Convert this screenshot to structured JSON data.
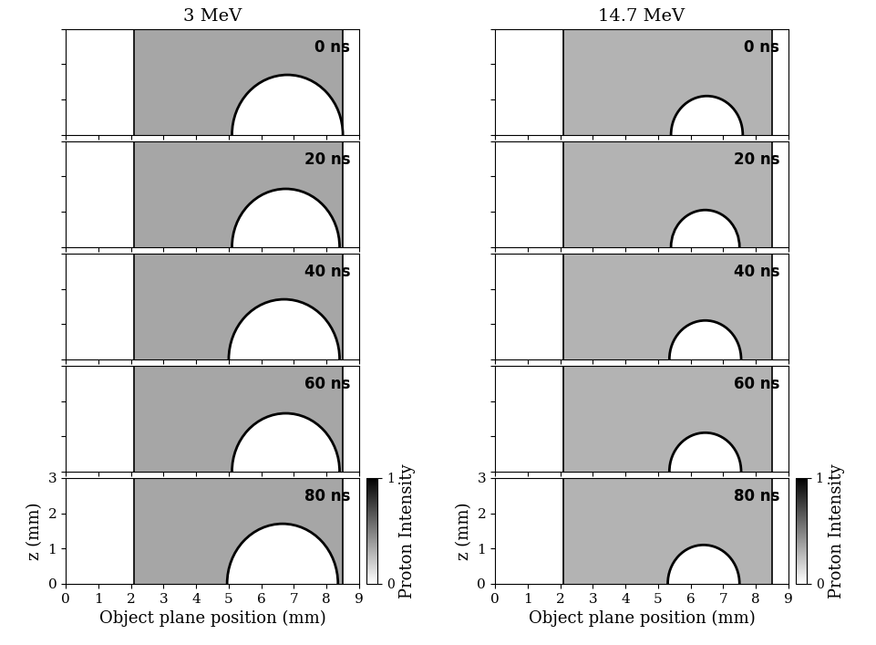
{
  "chart_data": [
    {
      "type": "image",
      "title": "3 MeV",
      "xlabel": "Object plane position (mm)",
      "ylabel": "z (mm)",
      "xlim": [
        0,
        9
      ],
      "ylim": [
        0,
        3
      ],
      "xticks": [
        0,
        1,
        2,
        3,
        4,
        5,
        6,
        7,
        8,
        9
      ],
      "yticks": [
        0,
        1,
        2,
        3
      ],
      "image_xrange": [
        2.1,
        8.5
      ],
      "background_intensity": 0.35,
      "panels": [
        {
          "label": "0 ns",
          "object_center": 6.8,
          "object_radius": 1.7
        },
        {
          "label": "20 ns",
          "object_center": 6.75,
          "object_radius": 1.65
        },
        {
          "label": "40 ns",
          "object_center": 6.7,
          "object_radius": 1.7
        },
        {
          "label": "60 ns",
          "object_center": 6.75,
          "object_radius": 1.65
        },
        {
          "label": "80 ns",
          "object_center": 6.65,
          "object_radius": 1.7
        }
      ],
      "colorbar": {
        "label": "Proton Intensity",
        "range": [
          0,
          1
        ],
        "ticks": [
          0,
          1
        ]
      }
    },
    {
      "type": "image",
      "title": "14.7 MeV",
      "xlabel": "Object plane position (mm)",
      "ylabel": "z (mm)",
      "xlim": [
        0,
        9
      ],
      "ylim": [
        0,
        3
      ],
      "xticks": [
        0,
        1,
        2,
        3,
        4,
        5,
        6,
        7,
        8,
        9
      ],
      "yticks": [
        0,
        1,
        2,
        3
      ],
      "image_xrange": [
        2.1,
        8.5
      ],
      "background_intensity": 0.3,
      "panels": [
        {
          "label": "0 ns",
          "object_center": 6.5,
          "object_radius": 1.1
        },
        {
          "label": "20 ns",
          "object_center": 6.45,
          "object_radius": 1.05
        },
        {
          "label": "40 ns",
          "object_center": 6.45,
          "object_radius": 1.1
        },
        {
          "label": "60 ns",
          "object_center": 6.45,
          "object_radius": 1.1
        },
        {
          "label": "80 ns",
          "object_center": 6.4,
          "object_radius": 1.1
        }
      ],
      "colorbar": {
        "label": "Proton Intensity",
        "range": [
          0,
          1
        ],
        "ticks": [
          0,
          1
        ]
      }
    }
  ]
}
